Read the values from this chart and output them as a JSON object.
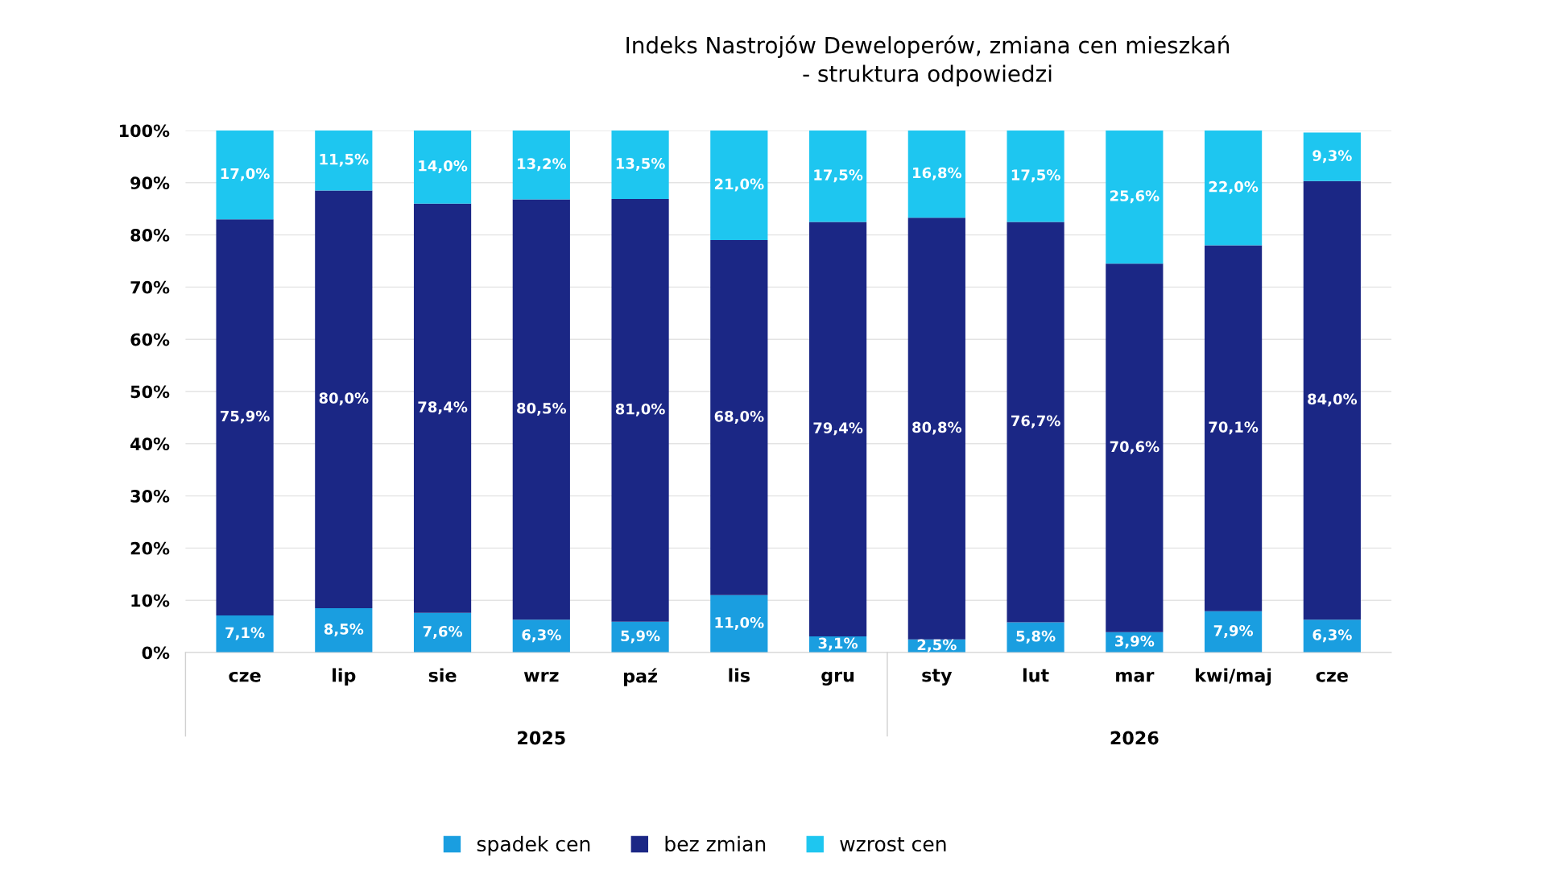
{
  "chart_data": {
    "type": "bar",
    "stacked": true,
    "title": "Indeks Nastrojów Deweloperów, zmiana cen mieszkań\n- struktura odpowiedzi",
    "categories": [
      "cze",
      "lip",
      "sie",
      "wrz",
      "paź",
      "lis",
      "gru",
      "sty",
      "lut",
      "mar",
      "kwi/maj",
      "cze"
    ],
    "series": [
      {
        "name": "spadek cen",
        "color": "#1a9ee0",
        "values": [
          7.1,
          8.5,
          7.6,
          6.3,
          5.9,
          11.0,
          3.1,
          2.5,
          5.8,
          3.9,
          7.9,
          6.3
        ],
        "value_labels": [
          "7,1%",
          "8,5%",
          "7,6%",
          "6,3%",
          "5,9%",
          "11,0%",
          "3,1%",
          "2,5%",
          "5,8%",
          "3,9%",
          "7,9%",
          "6,3%"
        ]
      },
      {
        "name": "bez zmian",
        "color": "#1b2785",
        "values": [
          75.9,
          80.0,
          78.4,
          80.5,
          81.0,
          68.0,
          79.4,
          80.8,
          76.7,
          70.6,
          70.1,
          84.0
        ],
        "value_labels": [
          "75,9%",
          "80,0%",
          "78,4%",
          "80,5%",
          "81,0%",
          "68,0%",
          "79,4%",
          "80,8%",
          "76,7%",
          "70,6%",
          "70,1%",
          "84,0%"
        ]
      },
      {
        "name": "wzrost cen",
        "color": "#1ec6f0",
        "values": [
          17.0,
          11.5,
          14.0,
          13.2,
          13.5,
          21.0,
          17.5,
          16.8,
          17.5,
          25.6,
          22.0,
          9.3
        ],
        "value_labels": [
          "17,0%",
          "11,5%",
          "14,0%",
          "13,2%",
          "13,5%",
          "21,0%",
          "17,5%",
          "16,8%",
          "17,5%",
          "25,6%",
          "22,0%",
          "9,3%"
        ]
      }
    ],
    "ylim": [
      0,
      100
    ],
    "yticks": [
      {
        "value": 0,
        "label": "0%"
      },
      {
        "value": 10,
        "label": "10%"
      },
      {
        "value": 20,
        "label": "20%"
      },
      {
        "value": 30,
        "label": "30%"
      },
      {
        "value": 40,
        "label": "40%"
      },
      {
        "value": 50,
        "label": "50%"
      },
      {
        "value": 60,
        "label": "60%"
      },
      {
        "value": 70,
        "label": "70%"
      },
      {
        "value": 80,
        "label": "80%"
      },
      {
        "value": 90,
        "label": "90%"
      },
      {
        "value": 100,
        "label": "100%"
      }
    ],
    "grid": "y",
    "legend": "bottom",
    "annotations": [
      "2025",
      "2026"
    ]
  }
}
